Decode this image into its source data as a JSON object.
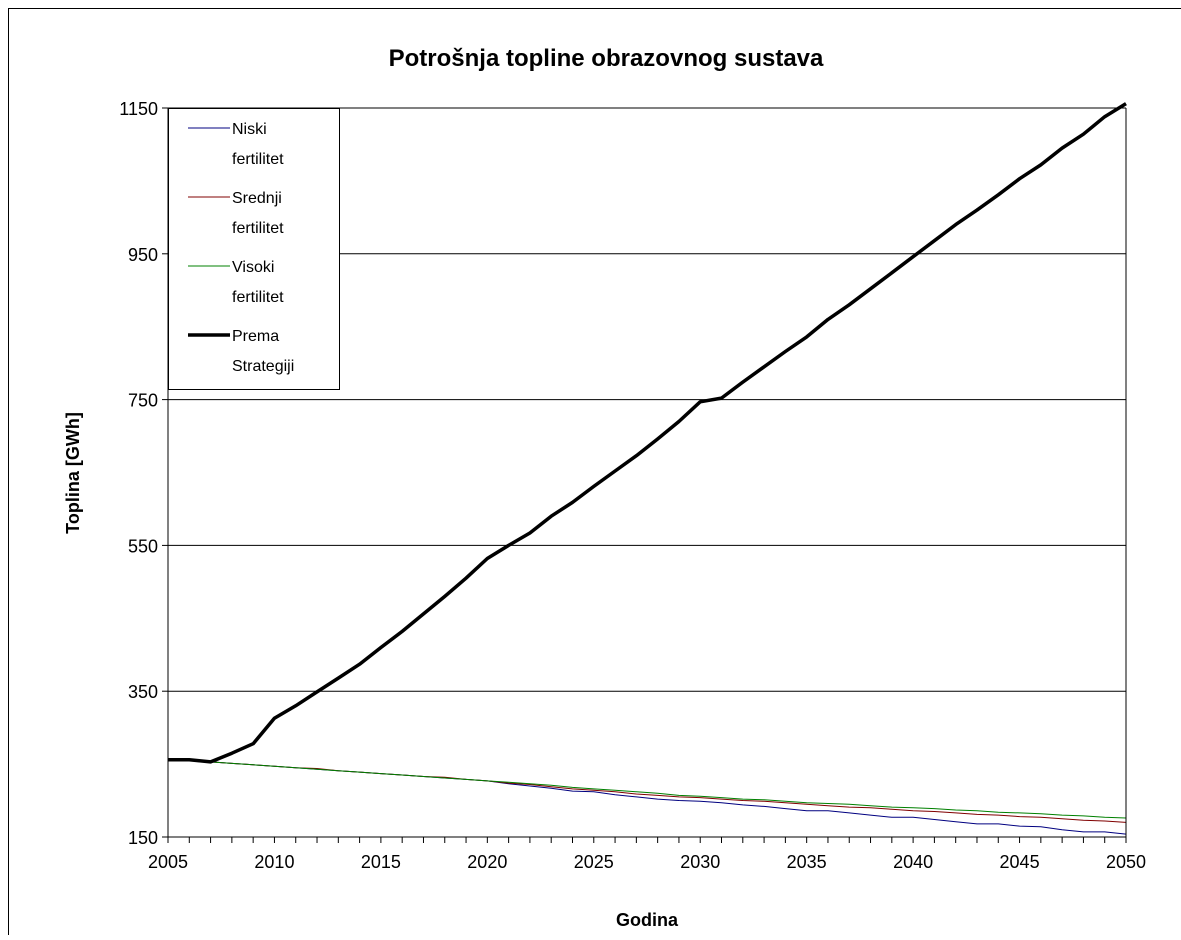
{
  "chart_data": {
    "type": "line",
    "title": "Potrošnja topline obrazovnog sustava",
    "xlabel": "Godina",
    "ylabel": "Toplina [GWh]",
    "xlim": [
      2005,
      2050
    ],
    "ylim": [
      150,
      1150
    ],
    "xticks": [
      "2005",
      "2010",
      "2015",
      "2020",
      "2025",
      "2030",
      "2035",
      "2040",
      "2045",
      "2050"
    ],
    "yticks": [
      "150",
      "350",
      "550",
      "750",
      "950",
      "1150"
    ],
    "grid": "horizontal",
    "legend_position": "top-left",
    "series": [
      {
        "name": "Niski fertilitet",
        "name_lines": [
          "Niski",
          "fertilitet"
        ],
        "color": "#000080",
        "width": "thin",
        "x": [
          2005,
          2006,
          2007,
          2008,
          2009,
          2010,
          2011,
          2012,
          2013,
          2014,
          2015,
          2016,
          2017,
          2018,
          2019,
          2020,
          2021,
          2022,
          2023,
          2024,
          2025,
          2026,
          2027,
          2028,
          2029,
          2030,
          2031,
          2032,
          2033,
          2034,
          2035,
          2036,
          2037,
          2038,
          2039,
          2040,
          2041,
          2042,
          2043,
          2044,
          2045,
          2046,
          2047,
          2048,
          2049,
          2050
        ],
        "values": [
          256,
          256,
          253,
          251,
          249,
          247,
          245,
          243,
          241,
          239,
          237,
          235,
          233,
          231,
          229,
          227,
          223,
          220,
          217,
          213,
          212,
          208,
          205,
          202,
          200,
          199,
          197,
          194,
          192,
          189,
          186,
          186,
          183,
          180,
          177,
          177,
          174,
          171,
          168,
          168,
          165,
          164,
          160,
          157,
          157,
          154
        ]
      },
      {
        "name": "Srednji fertilitet",
        "name_lines": [
          "Srednji",
          "fertilitet"
        ],
        "color": "#800000",
        "width": "thin",
        "x": [
          2005,
          2006,
          2007,
          2008,
          2009,
          2010,
          2011,
          2012,
          2013,
          2014,
          2015,
          2016,
          2017,
          2018,
          2019,
          2020,
          2021,
          2022,
          2023,
          2024,
          2025,
          2026,
          2027,
          2028,
          2029,
          2030,
          2031,
          2032,
          2033,
          2034,
          2035,
          2036,
          2037,
          2038,
          2039,
          2040,
          2041,
          2042,
          2043,
          2044,
          2045,
          2046,
          2047,
          2048,
          2049,
          2050
        ],
        "values": [
          256,
          256,
          253,
          251,
          249,
          247,
          245,
          244,
          241,
          239,
          237,
          235,
          233,
          232,
          229,
          227,
          224,
          222,
          219,
          216,
          214,
          212,
          209,
          207,
          205,
          204,
          202,
          200,
          199,
          197,
          195,
          193,
          191,
          190,
          188,
          186,
          185,
          183,
          181,
          180,
          178,
          177,
          175,
          173,
          172,
          170
        ]
      },
      {
        "name": "Visoki fertilitet",
        "name_lines": [
          "Visoki",
          "fertilitet"
        ],
        "color": "#008000",
        "width": "thin",
        "x": [
          2005,
          2006,
          2007,
          2008,
          2009,
          2010,
          2011,
          2012,
          2013,
          2014,
          2015,
          2016,
          2017,
          2018,
          2019,
          2020,
          2021,
          2022,
          2023,
          2024,
          2025,
          2026,
          2027,
          2028,
          2029,
          2030,
          2031,
          2032,
          2033,
          2034,
          2035,
          2036,
          2037,
          2038,
          2039,
          2040,
          2041,
          2042,
          2043,
          2044,
          2045,
          2046,
          2047,
          2048,
          2049,
          2050
        ],
        "values": [
          256,
          256,
          253,
          251,
          249,
          247,
          245,
          243,
          241,
          239,
          237,
          235,
          233,
          231,
          229,
          227,
          225,
          223,
          221,
          218,
          216,
          214,
          212,
          210,
          207,
          206,
          204,
          202,
          201,
          199,
          197,
          196,
          195,
          193,
          191,
          190,
          189,
          187,
          186,
          184,
          183,
          182,
          180,
          179,
          177,
          176
        ]
      },
      {
        "name": "Prema Strategiji",
        "name_lines": [
          "Prema",
          "Strategiji"
        ],
        "color": "#000000",
        "width": "thick",
        "x": [
          2005,
          2006,
          2007,
          2008,
          2009,
          2010,
          2011,
          2012,
          2013,
          2014,
          2015,
          2016,
          2017,
          2018,
          2019,
          2020,
          2021,
          2022,
          2023,
          2024,
          2025,
          2026,
          2027,
          2028,
          2029,
          2030,
          2031,
          2032,
          2033,
          2034,
          2035,
          2036,
          2037,
          2038,
          2039,
          2040,
          2041,
          2042,
          2043,
          2044,
          2045,
          2046,
          2047,
          2048,
          2049,
          2050
        ],
        "values": [
          256,
          256,
          253,
          265,
          278,
          313,
          330,
          349,
          368,
          387,
          410,
          432,
          456,
          480,
          505,
          532,
          550,
          567,
          590,
          609,
          631,
          652,
          673,
          696,
          720,
          747,
          752,
          774,
          795,
          816,
          836,
          860,
          880,
          902,
          924,
          946,
          968,
          990,
          1010,
          1031,
          1053,
          1072,
          1095,
          1114,
          1138,
          1156
        ]
      }
    ]
  }
}
